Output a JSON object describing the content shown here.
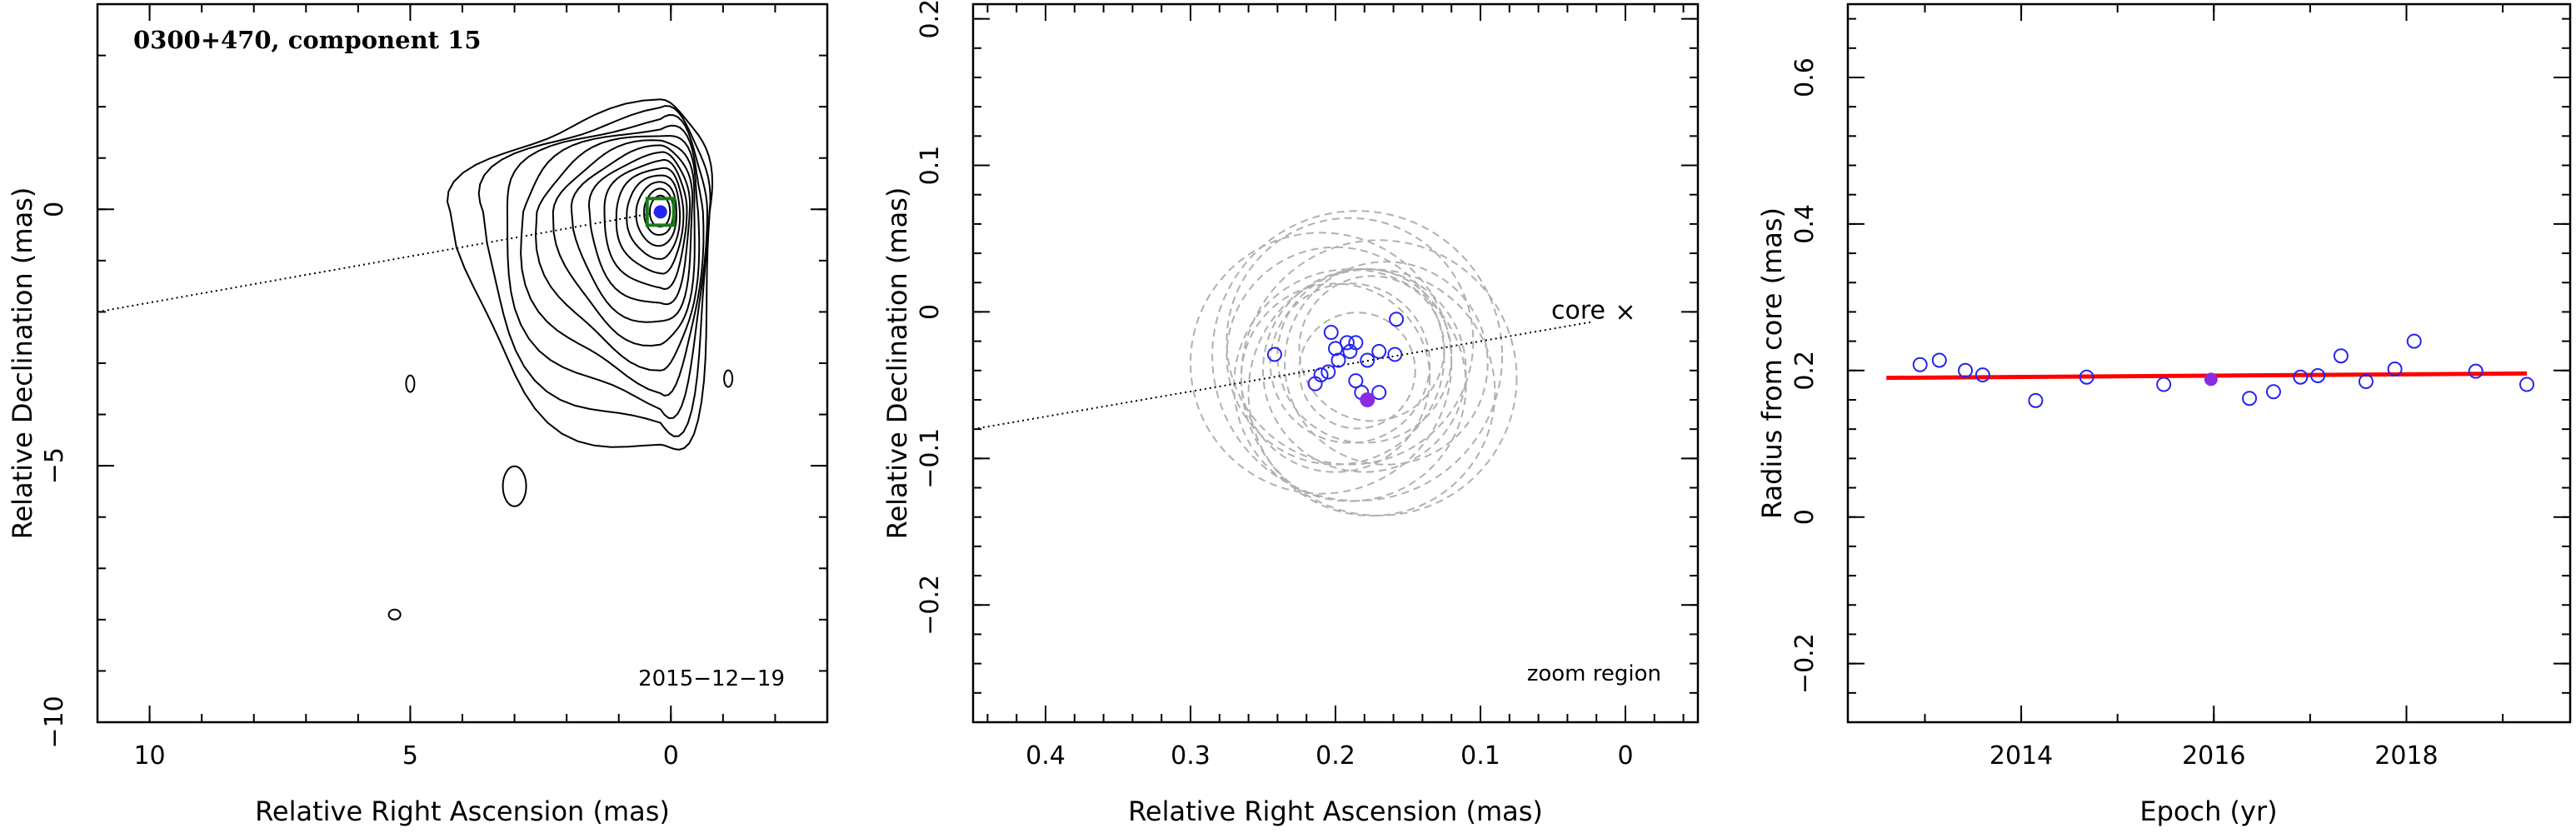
{
  "chart_data": [
    {
      "type": "contour",
      "title": "0300+470, component 15",
      "annotation": "2015−12−19",
      "xlabel": "Relative Right Ascension (mas)",
      "ylabel": "Relative Declination (mas)",
      "xlim": [
        11,
        -3
      ],
      "ylim": [
        -10,
        4
      ],
      "xticks": [
        "10",
        "5",
        "0"
      ],
      "yticks": [
        "−10",
        "−5",
        "0"
      ],
      "jet_axis": {
        "from": [
          11,
          -2.0
        ],
        "to": [
          0.2,
          -0.05
        ]
      },
      "component": {
        "x": 0.2,
        "y": -0.05,
        "marker": "blue-filled-circle",
        "box_color": "#1a7a1a"
      },
      "contour_levels": 14,
      "contour_peak": [
        0.2,
        -0.05
      ],
      "isolated_islands": [
        [
          5.0,
          -3.4
        ],
        [
          -1.1,
          -3.3
        ],
        [
          3.0,
          -5.4
        ],
        [
          5.3,
          -7.9
        ]
      ]
    },
    {
      "type": "scatter",
      "subtitle": "zoom region",
      "core_label": "core",
      "core_marker": "×",
      "xlabel": "Relative Right Ascension (mas)",
      "ylabel": "Relative Declination (mas)",
      "xlim": [
        0.45,
        -0.05
      ],
      "ylim": [
        -0.28,
        0.21
      ],
      "xticks": [
        "0.4",
        "0.3",
        "0.2",
        "0.1",
        "0"
      ],
      "yticks": [
        "−0.2",
        "−0.1",
        "0",
        "0.1",
        "0.2"
      ],
      "jet_axis": {
        "from": [
          0.45,
          -0.08
        ],
        "to": [
          0.0,
          0.0
        ]
      },
      "points": [
        [
          0.242,
          -0.029
        ],
        [
          0.214,
          -0.049
        ],
        [
          0.21,
          -0.043
        ],
        [
          0.205,
          -0.041
        ],
        [
          0.203,
          -0.014
        ],
        [
          0.2,
          -0.025
        ],
        [
          0.198,
          -0.033
        ],
        [
          0.192,
          -0.021
        ],
        [
          0.19,
          -0.027
        ],
        [
          0.186,
          -0.047
        ],
        [
          0.186,
          -0.021
        ],
        [
          0.182,
          -0.055
        ],
        [
          0.178,
          -0.033
        ],
        [
          0.17,
          -0.055
        ],
        [
          0.17,
          -0.027
        ],
        [
          0.159,
          -0.029
        ],
        [
          0.158,
          -0.005
        ]
      ],
      "highlight_point": [
        0.178,
        -0.06
      ],
      "circles": [
        {
          "x": 0.19,
          "y": -0.035,
          "r": 0.055
        },
        {
          "x": 0.18,
          "y": -0.04,
          "r": 0.07
        },
        {
          "x": 0.19,
          "y": -0.02,
          "r": 0.085
        },
        {
          "x": 0.17,
          "y": -0.045,
          "r": 0.095
        },
        {
          "x": 0.2,
          "y": -0.03,
          "r": 0.075
        },
        {
          "x": 0.18,
          "y": -0.03,
          "r": 0.06
        },
        {
          "x": 0.21,
          "y": -0.035,
          "r": 0.09
        },
        {
          "x": 0.165,
          "y": -0.035,
          "r": 0.07
        },
        {
          "x": 0.19,
          "y": -0.05,
          "r": 0.08
        },
        {
          "x": 0.175,
          "y": -0.025,
          "r": 0.05
        },
        {
          "x": 0.185,
          "y": -0.04,
          "r": 0.04
        },
        {
          "x": 0.2,
          "y": -0.045,
          "r": 0.065
        },
        {
          "x": 0.175,
          "y": -0.055,
          "r": 0.085
        },
        {
          "x": 0.185,
          "y": -0.03,
          "r": 0.1
        }
      ]
    },
    {
      "type": "scatter",
      "xlabel": "Epoch (yr)",
      "ylabel": "Radius from core (mas)",
      "xlim": [
        2012.2,
        2019.7
      ],
      "ylim": [
        -0.28,
        0.7
      ],
      "xticks": [
        "2014",
        "2016",
        "2018"
      ],
      "yticks": [
        "−0.2",
        "0",
        "0.2",
        "0.4",
        "0.6"
      ],
      "x": [
        2012.95,
        2013.15,
        2013.42,
        2013.6,
        2014.15,
        2014.68,
        2015.48,
        2016.37,
        2016.62,
        2016.9,
        2017.08,
        2017.32,
        2017.58,
        2017.88,
        2018.08,
        2018.72,
        2019.25
      ],
      "y": [
        0.208,
        0.214,
        0.2,
        0.194,
        0.159,
        0.191,
        0.181,
        0.162,
        0.171,
        0.191,
        0.193,
        0.22,
        0.185,
        0.202,
        0.24,
        0.199,
        0.181
      ],
      "highlight_point": [
        2015.97,
        0.188
      ],
      "fit_line": {
        "x": [
          2012.6,
          2019.25
        ],
        "y": [
          0.19,
          0.196
        ],
        "color": "#ff0000"
      }
    }
  ],
  "colors": {
    "marker": "#2424ee",
    "highlight": "#8a2be2",
    "fit": "#ff0000",
    "circles": "#b0b0b0",
    "box": "#1a7a1a"
  }
}
